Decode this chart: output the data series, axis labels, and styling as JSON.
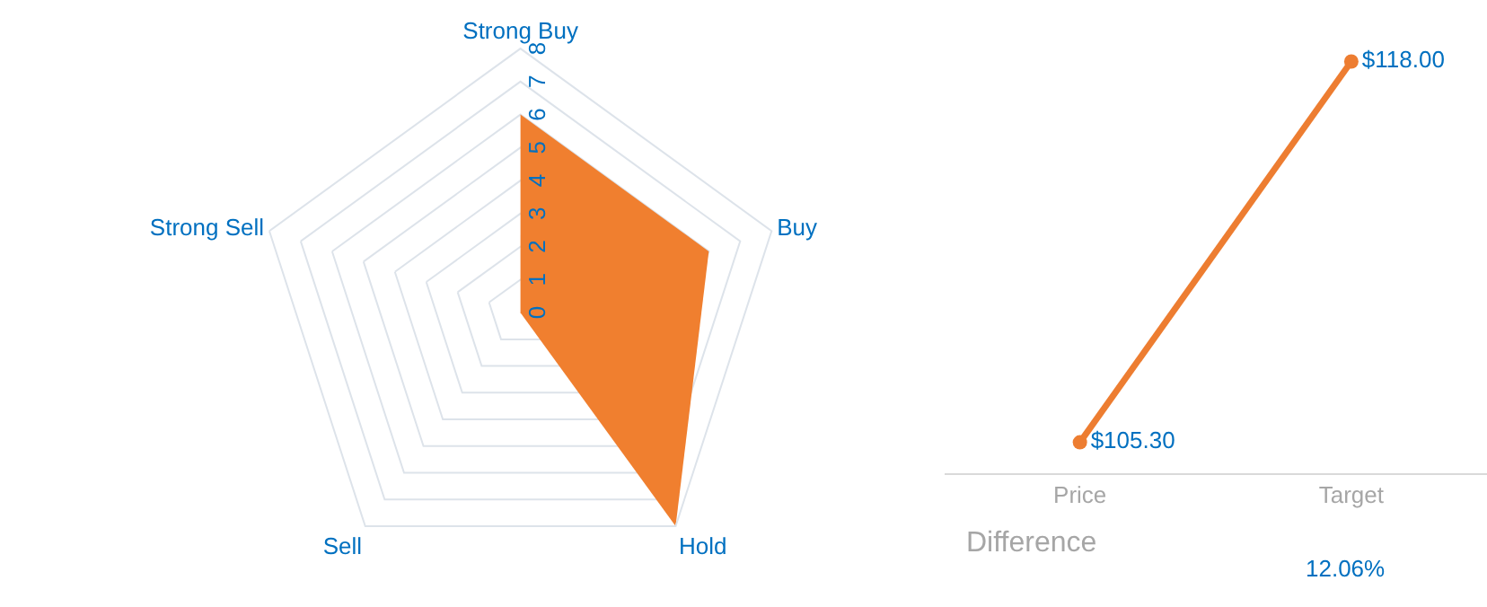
{
  "chart_data": [
    {
      "type": "radar",
      "categories": [
        "Strong Buy",
        "Buy",
        "Hold",
        "Sell",
        "Strong Sell"
      ],
      "series": [
        {
          "color": "#f07f2f",
          "values": [
            6,
            6,
            8,
            0,
            0
          ]
        }
      ],
      "ylim": [
        0,
        8
      ],
      "yticks": [
        0,
        1,
        2,
        3,
        4,
        5,
        6,
        7,
        8
      ],
      "grid": true,
      "marker": "none"
    },
    {
      "type": "line",
      "categories": [
        "Price",
        "Target"
      ],
      "series": [
        {
          "color": "#ed7d31",
          "values": [
            105.3,
            118.0
          ],
          "value_labels": [
            "$105.30",
            "$118.00"
          ]
        }
      ],
      "marker": "circle",
      "grid": false,
      "annotations": [
        "Difference",
        "12.06%"
      ]
    }
  ]
}
